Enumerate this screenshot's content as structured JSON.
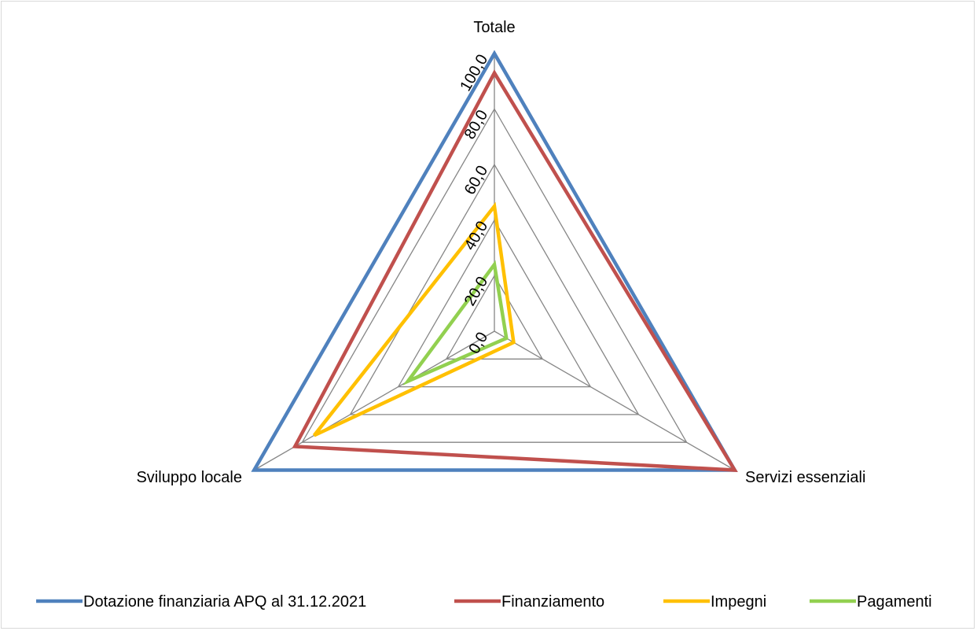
{
  "chart_data": {
    "type": "radar",
    "axes": [
      "Totale",
      "Servizi essenziali",
      "Sviluppo locale"
    ],
    "rlim": [
      0,
      100
    ],
    "ticks": [
      "0,0",
      "20,0",
      "40,0",
      "60,0",
      "80,0",
      "100,0"
    ],
    "tick_values": [
      0,
      20,
      40,
      60,
      80,
      100
    ],
    "grid": true,
    "legend_position": "bottom",
    "series": [
      {
        "name": "Dotazione finanziaria APQ al 31.12.2021",
        "color": "#4F81BD",
        "values": [
          100,
          100,
          100
        ]
      },
      {
        "name": "Finanziamento",
        "color": "#C0504D",
        "values": [
          93,
          100,
          83
        ]
      },
      {
        "name": "Impegni",
        "color": "#FFC000",
        "values": [
          45,
          8,
          75
        ]
      },
      {
        "name": "Pagamenti",
        "color": "#92D050",
        "values": [
          24,
          5,
          36
        ]
      }
    ]
  }
}
